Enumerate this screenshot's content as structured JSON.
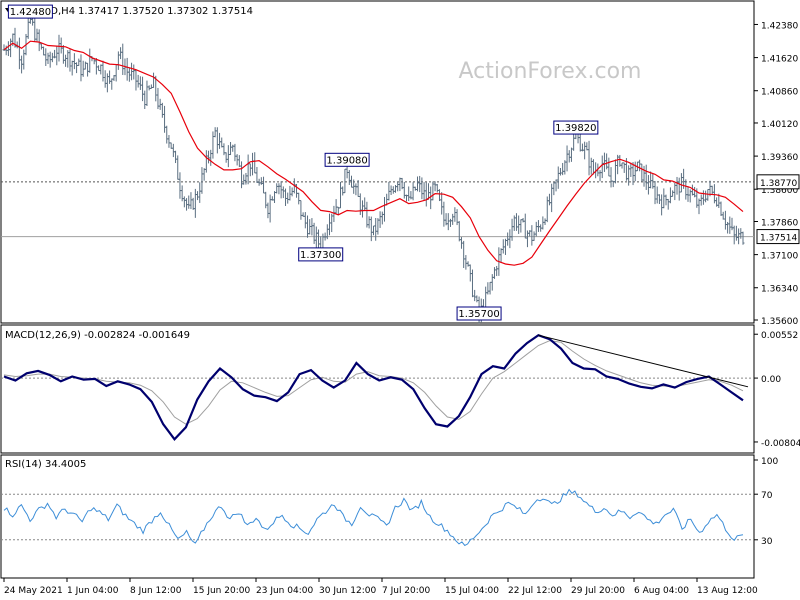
{
  "header": {
    "symbol_label": "GBPUSD,H4",
    "ohlc": "1.37417 1.37520 1.37302 1.37514"
  },
  "watermark": "ActionForex.com",
  "colors": {
    "bars": "#5a6e80",
    "ma": "#e8000b",
    "macd": "#00006e",
    "signal": "#a0a0a0",
    "rsi": "#3d8ed8",
    "trendline": "#000000",
    "grid_dash": "#808080",
    "label_border": "#000080"
  },
  "chart_data": [
    {
      "type": "candlestick",
      "name": "price",
      "ylim": [
        1.356,
        1.4262
      ],
      "y_ticks": [
        "1.42380",
        "1.41620",
        "1.40860",
        "1.40120",
        "1.39360",
        "1.38600",
        "1.37860",
        "1.37100",
        "1.36340",
        "1.35600"
      ],
      "current_price": 1.37514,
      "current_label": "1.37514",
      "reference_price": 1.3877,
      "reference_label": "1.38770",
      "annotations": [
        {
          "label": "1.42480",
          "value": 1.4248
        },
        {
          "label": "1.39080",
          "value": 1.3908
        },
        {
          "label": "1.37300",
          "value": 1.373
        },
        {
          "label": "1.35700",
          "value": 1.357
        },
        {
          "label": "1.39820",
          "value": 1.3982
        }
      ],
      "close_trace": [
        1.418,
        1.421,
        1.416,
        1.4248,
        1.419,
        1.415,
        1.418,
        1.417,
        1.415,
        1.413,
        1.416,
        1.414,
        1.41,
        1.417,
        1.413,
        1.411,
        1.407,
        1.41,
        1.402,
        1.396,
        1.387,
        1.381,
        1.385,
        1.392,
        1.399,
        1.393,
        1.396,
        1.389,
        1.392,
        1.387,
        1.382,
        1.388,
        1.384,
        1.386,
        1.379,
        1.376,
        1.373,
        1.38,
        1.383,
        1.3908,
        1.385,
        1.38,
        1.376,
        1.38,
        1.386,
        1.389,
        1.383,
        1.387,
        1.384,
        1.386,
        1.379,
        1.381,
        1.374,
        1.365,
        1.357,
        1.362,
        1.369,
        1.374,
        1.379,
        1.377,
        1.375,
        1.378,
        1.383,
        1.389,
        1.394,
        1.3982,
        1.395,
        1.39,
        1.392,
        1.388,
        1.393,
        1.389,
        1.391,
        1.388,
        1.385,
        1.383,
        1.386,
        1.387,
        1.385,
        1.382,
        1.386,
        1.384,
        1.379,
        1.375,
        1.37514
      ]
    },
    {
      "type": "line",
      "name": "MACD(12,26,9)",
      "label_values": "-0.002824 -0.001649",
      "ylim": [
        -0.0088,
        0.0058
      ],
      "y_ticks": [
        "0.00552",
        "0.00",
        "-0.00804"
      ],
      "series": [
        {
          "name": "MACD",
          "values": [
            0.0002,
            -0.0003,
            0.0006,
            0.0009,
            0.0004,
            -0.0004,
            0.0002,
            -0.0002,
            -0.0001,
            -0.001,
            -0.0004,
            -0.0008,
            -0.0014,
            -0.003,
            -0.0058,
            -0.0077,
            -0.0062,
            -0.0027,
            -0.0004,
            0.0012,
            0.0001,
            -0.0014,
            -0.0022,
            -0.0024,
            -0.0029,
            -0.0018,
            0.0005,
            0.001,
            -0.0003,
            -0.0012,
            -0.0003,
            0.0019,
            0.0005,
            -0.0003,
            0.0001,
            -0.0002,
            -0.0014,
            -0.0038,
            -0.0058,
            -0.0061,
            -0.0048,
            -0.0024,
            0.0005,
            0.0015,
            0.0012,
            0.0031,
            0.0044,
            0.0054,
            0.0049,
            0.0037,
            0.0019,
            0.0012,
            0.0011,
            0.0002,
            -0.0001,
            -0.0007,
            -0.0011,
            -0.0013,
            -0.0008,
            -0.0012,
            -0.0005,
            -0.0001,
            0.0002,
            -0.0008,
            -0.0018,
            -0.0028
          ]
        },
        {
          "name": "Signal",
          "values": [
            0.0004,
            0.0002,
            0.0003,
            0.0005,
            0.0005,
            0.0002,
            0.0001,
            0.0,
            -0.0001,
            -0.0004,
            -0.0005,
            -0.0006,
            -0.0009,
            -0.0016,
            -0.003,
            -0.0049,
            -0.0058,
            -0.0051,
            -0.0035,
            -0.0015,
            -0.0004,
            -0.0006,
            -0.0012,
            -0.0018,
            -0.0023,
            -0.0022,
            -0.0012,
            -0.0002,
            0.0001,
            -0.0004,
            -0.0005,
            0.0005,
            0.0008,
            0.0003,
            0.0002,
            0.0,
            -0.0006,
            -0.0018,
            -0.0035,
            -0.0049,
            -0.0052,
            -0.0042,
            -0.002,
            0.0,
            0.0008,
            0.0019,
            0.003,
            0.0041,
            0.0047,
            0.0045,
            0.0034,
            0.0024,
            0.0016,
            0.0009,
            0.0004,
            -0.0001,
            -0.0006,
            -0.0009,
            -0.001,
            -0.0011,
            -0.0008,
            -0.0005,
            -0.0002,
            -0.0004,
            -0.0009,
            -0.0016
          ]
        }
      ],
      "trendline": {
        "from": 0.0054,
        "to": -0.0011
      }
    },
    {
      "type": "line",
      "name": "RSI(14)",
      "label_values": "34.4005",
      "ylim": [
        0,
        100
      ],
      "y_ticks": [
        "100",
        "70",
        "30",
        "0"
      ],
      "levels": [
        70,
        30
      ],
      "series": [
        {
          "name": "RSI",
          "values": [
            58,
            52,
            60,
            48,
            56,
            62,
            50,
            57,
            52,
            46,
            58,
            54,
            48,
            60,
            51,
            44,
            38,
            47,
            55,
            42,
            30,
            36,
            25,
            40,
            52,
            60,
            48,
            55,
            42,
            50,
            38,
            46,
            52,
            44,
            40,
            36,
            48,
            55,
            62,
            50,
            44,
            60,
            52,
            48,
            42,
            58,
            65,
            55,
            63,
            50,
            44,
            38,
            30,
            24,
            32,
            40,
            50,
            56,
            62,
            58,
            52,
            64,
            68,
            60,
            66,
            72,
            70,
            62,
            55,
            58,
            52,
            55,
            50,
            56,
            48,
            44,
            52,
            56,
            40,
            48,
            36,
            46,
            52,
            40,
            30,
            34.4
          ]
        }
      ]
    }
  ],
  "x_axis": {
    "ticks": [
      "24 May 2021",
      "1 Jun 04:00",
      "8 Jun 12:00",
      "15 Jun 20:00",
      "23 Jun 04:00",
      "30 Jun 12:00",
      "7 Jul 20:00",
      "15 Jul 04:00",
      "22 Jul 12:00",
      "29 Jul 20:00",
      "6 Aug 04:00",
      "13 Aug 12:00"
    ]
  }
}
